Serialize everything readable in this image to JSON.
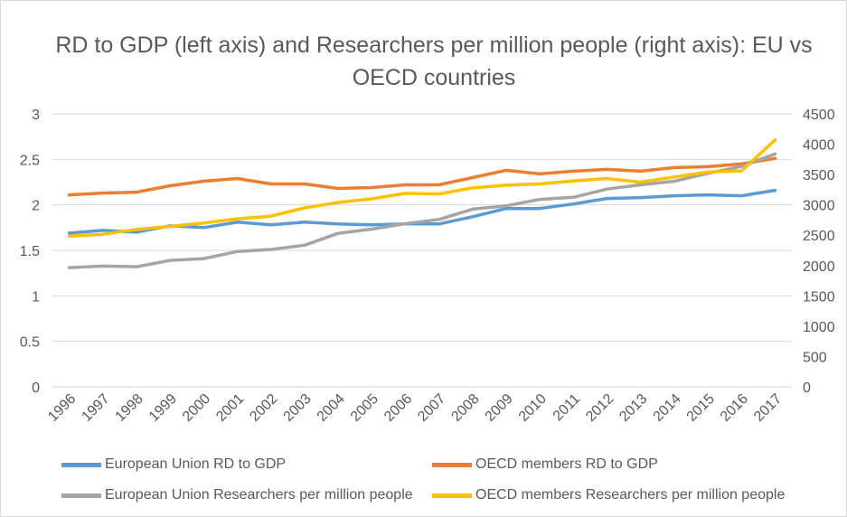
{
  "chart_data": {
    "type": "line",
    "title": "RD to GDP (left axis) and Researchers per million people (right axis): EU vs OECD countries",
    "categories": [
      "1996",
      "1997",
      "1998",
      "1999",
      "2000",
      "2001",
      "2002",
      "2003",
      "2004",
      "2005",
      "2006",
      "2007",
      "2008",
      "2009",
      "2010",
      "2011",
      "2012",
      "2013",
      "2014",
      "2015",
      "2016",
      "2017"
    ],
    "left_axis": {
      "ylim": [
        0,
        3
      ],
      "ticks": [
        "0",
        "0.5",
        "1",
        "1.5",
        "2",
        "2.5",
        "3"
      ]
    },
    "right_axis": {
      "ylim": [
        0,
        4500
      ],
      "ticks": [
        "0",
        "500",
        "1000",
        "1500",
        "2000",
        "2500",
        "3000",
        "3500",
        "4000",
        "4500"
      ]
    },
    "grid": true,
    "legend_position": "bottom",
    "series": [
      {
        "name": "European Union RD to GDP",
        "axis": "left",
        "color": "#5b9bd5",
        "values": [
          1.69,
          1.72,
          1.7,
          1.77,
          1.75,
          1.81,
          1.78,
          1.81,
          1.79,
          1.78,
          1.79,
          1.79,
          1.87,
          1.96,
          1.96,
          2.01,
          2.07,
          2.08,
          2.1,
          2.11,
          2.1,
          2.16
        ]
      },
      {
        "name": "OECD members RD to GDP",
        "axis": "left",
        "color": "#ed7d31",
        "values": [
          2.11,
          2.13,
          2.14,
          2.21,
          2.26,
          2.29,
          2.23,
          2.23,
          2.18,
          2.19,
          2.22,
          2.22,
          2.3,
          2.38,
          2.34,
          2.37,
          2.39,
          2.37,
          2.41,
          2.42,
          2.45,
          2.51
        ]
      },
      {
        "name": "European Union Researchers per million people",
        "axis": "right",
        "color": "#a5a5a5",
        "values": [
          1965,
          1990,
          1980,
          2085,
          2115,
          2230,
          2265,
          2335,
          2530,
          2600,
          2690,
          2760,
          2930,
          2985,
          3090,
          3125,
          3260,
          3330,
          3390,
          3520,
          3635,
          3840
        ]
      },
      {
        "name": "OECD members Researchers per million people",
        "axis": "right",
        "color": "#ffc000",
        "values": [
          2485,
          2515,
          2595,
          2645,
          2700,
          2770,
          2815,
          2950,
          3040,
          3100,
          3190,
          3180,
          3280,
          3325,
          3345,
          3395,
          3435,
          3375,
          3460,
          3540,
          3560,
          4070
        ]
      }
    ]
  },
  "legend": {
    "items": [
      {
        "label": "European Union RD to GDP",
        "color": "#5b9bd5"
      },
      {
        "label": "OECD members RD to GDP",
        "color": "#ed7d31"
      },
      {
        "label": "European Union Researchers per million people",
        "color": "#a5a5a5"
      },
      {
        "label": "OECD members Researchers per million people",
        "color": "#ffc000"
      }
    ]
  }
}
